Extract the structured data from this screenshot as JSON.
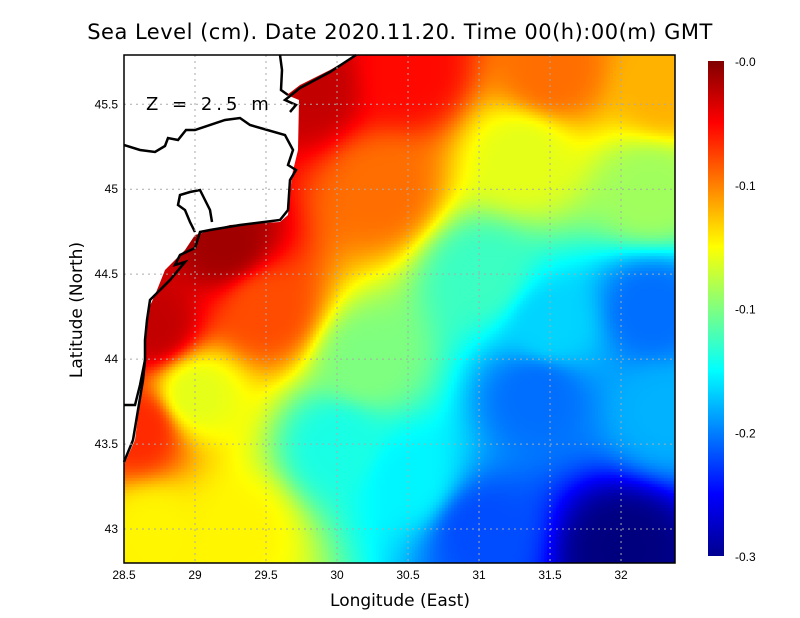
{
  "title": "Sea Level (cm). Date 2020.11.20. Time 00(h):00(m) GMT",
  "depth_label": "Z = 2.5 m",
  "chart_data": {
    "type": "heatmap",
    "title": "Sea Level (cm). Date 2020.11.20. Time 00(h):00(m) GMT",
    "xlabel": "Longitude (East)",
    "ylabel": "Latitude (North)",
    "xlim": [
      28.5,
      32.38
    ],
    "ylim": [
      42.8,
      45.79
    ],
    "x_ticks": [
      28.5,
      29,
      29.5,
      30,
      30.5,
      31,
      31.5,
      32
    ],
    "x_tick_labels": [
      "28.5",
      "29",
      "29.5",
      "30",
      "30.5",
      "31",
      "31.5",
      "32"
    ],
    "y_ticks": [
      43,
      43.5,
      44,
      44.5,
      45,
      45.5
    ],
    "y_tick_labels": [
      "43",
      "43.5",
      "44",
      "44.5",
      "45",
      "45.5"
    ],
    "grid": true,
    "colorbar": {
      "range": [
        -0.3,
        0.0
      ],
      "colormap": "jet",
      "placement": "right",
      "tick_values": [
        0.0,
        -0.075,
        -0.15,
        -0.225,
        -0.3
      ],
      "tick_labels": [
        "-0.0",
        "-0.1",
        "-0.1",
        "-0.2",
        "-0.3"
      ]
    },
    "control_points": [
      [
        29.8,
        45.6,
        -0.02
      ],
      [
        29.2,
        44.7,
        -0.01
      ],
      [
        28.7,
        44.2,
        -0.02
      ],
      [
        28.6,
        43.6,
        -0.05
      ],
      [
        30.5,
        45.7,
        -0.04
      ],
      [
        31.5,
        45.7,
        -0.07
      ],
      [
        32.3,
        45.6,
        -0.09
      ],
      [
        29.5,
        44.3,
        -0.06
      ],
      [
        30.3,
        45.0,
        -0.07
      ],
      [
        31.3,
        45.2,
        -0.12
      ],
      [
        32.2,
        45.0,
        -0.14
      ],
      [
        29.0,
        43.8,
        -0.12
      ],
      [
        28.7,
        43.0,
        -0.11
      ],
      [
        29.3,
        43.0,
        -0.11
      ],
      [
        30.0,
        43.5,
        -0.18
      ],
      [
        30.2,
        44.0,
        -0.15
      ],
      [
        31.0,
        44.5,
        -0.17
      ],
      [
        31.5,
        44.2,
        -0.2
      ],
      [
        32.2,
        44.3,
        -0.23
      ],
      [
        31.4,
        43.8,
        -0.23
      ],
      [
        32.0,
        42.9,
        -0.3
      ],
      [
        31.0,
        43.0,
        -0.24
      ],
      [
        30.5,
        43.3,
        -0.19
      ],
      [
        32.3,
        43.7,
        -0.21
      ]
    ]
  }
}
